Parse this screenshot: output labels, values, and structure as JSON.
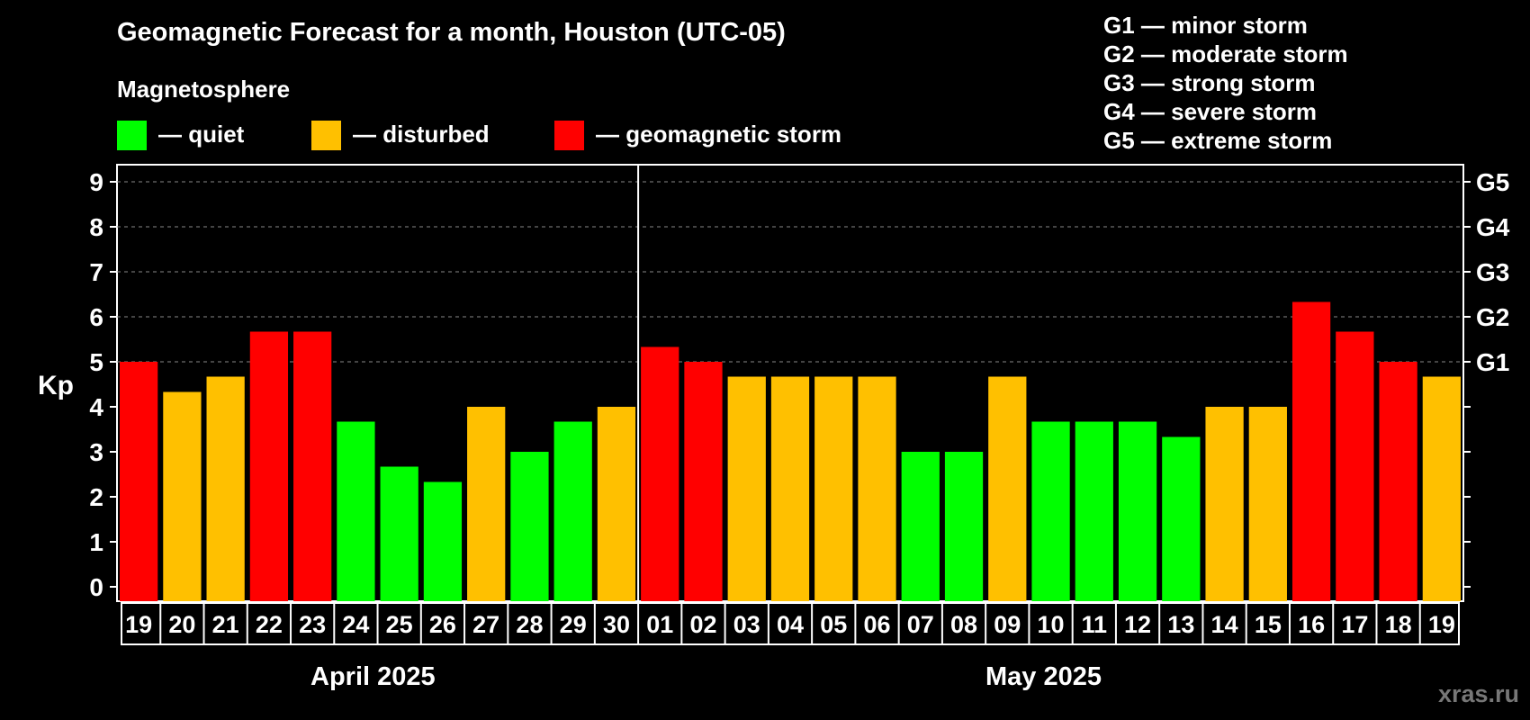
{
  "colors": {
    "quiet": "#00ff00",
    "disturbed": "#ffc000",
    "storm": "#ff0000",
    "background": "#000000",
    "grid": "#888888",
    "watermark": "#777777"
  },
  "header": {
    "title": "Geomagnetic Forecast for a month, Houston (UTC-05)",
    "subtitle": "Magnetosphere"
  },
  "legend": {
    "quiet": "— quiet",
    "disturbed": "— disturbed",
    "storm": "— geomagnetic storm"
  },
  "storm_scale": [
    "G1 — minor storm",
    "G2 — moderate storm",
    "G3 — strong storm",
    "G4 — severe storm",
    "G5 — extreme storm"
  ],
  "months": {
    "first": "April 2025",
    "second": "May 2025"
  },
  "watermark": "xras.ru",
  "chart_data": {
    "type": "bar",
    "ylabel": "Kp",
    "ylim": [
      0,
      9
    ],
    "yticks": [
      "0",
      "1",
      "2",
      "3",
      "4",
      "5",
      "6",
      "7",
      "8",
      "9"
    ],
    "right_axis_labels": [
      {
        "kp": 5,
        "label": "G1"
      },
      {
        "kp": 6,
        "label": "G2"
      },
      {
        "kp": 7,
        "label": "G3"
      },
      {
        "kp": 8,
        "label": "G4"
      },
      {
        "kp": 9,
        "label": "G5"
      }
    ],
    "categories": [
      "19",
      "20",
      "21",
      "22",
      "23",
      "24",
      "25",
      "26",
      "27",
      "28",
      "29",
      "30",
      "01",
      "02",
      "03",
      "04",
      "05",
      "06",
      "07",
      "08",
      "09",
      "10",
      "11",
      "12",
      "13",
      "14",
      "15",
      "16",
      "17",
      "18",
      "19"
    ],
    "values": [
      5.0,
      4.33,
      4.67,
      5.67,
      5.67,
      3.67,
      2.67,
      2.33,
      4.0,
      3.0,
      3.67,
      4.0,
      5.33,
      5.0,
      4.67,
      4.67,
      4.67,
      4.67,
      3.0,
      3.0,
      4.67,
      3.67,
      3.67,
      3.67,
      3.33,
      4.0,
      4.0,
      6.33,
      5.67,
      5.0,
      4.67
    ],
    "levels": [
      "storm",
      "disturbed",
      "disturbed",
      "storm",
      "storm",
      "quiet",
      "quiet",
      "quiet",
      "disturbed",
      "quiet",
      "quiet",
      "disturbed",
      "storm",
      "storm",
      "disturbed",
      "disturbed",
      "disturbed",
      "disturbed",
      "quiet",
      "quiet",
      "disturbed",
      "quiet",
      "quiet",
      "quiet",
      "quiet",
      "disturbed",
      "disturbed",
      "storm",
      "storm",
      "storm",
      "disturbed"
    ],
    "month_split_after_index": 11,
    "grid": true
  }
}
